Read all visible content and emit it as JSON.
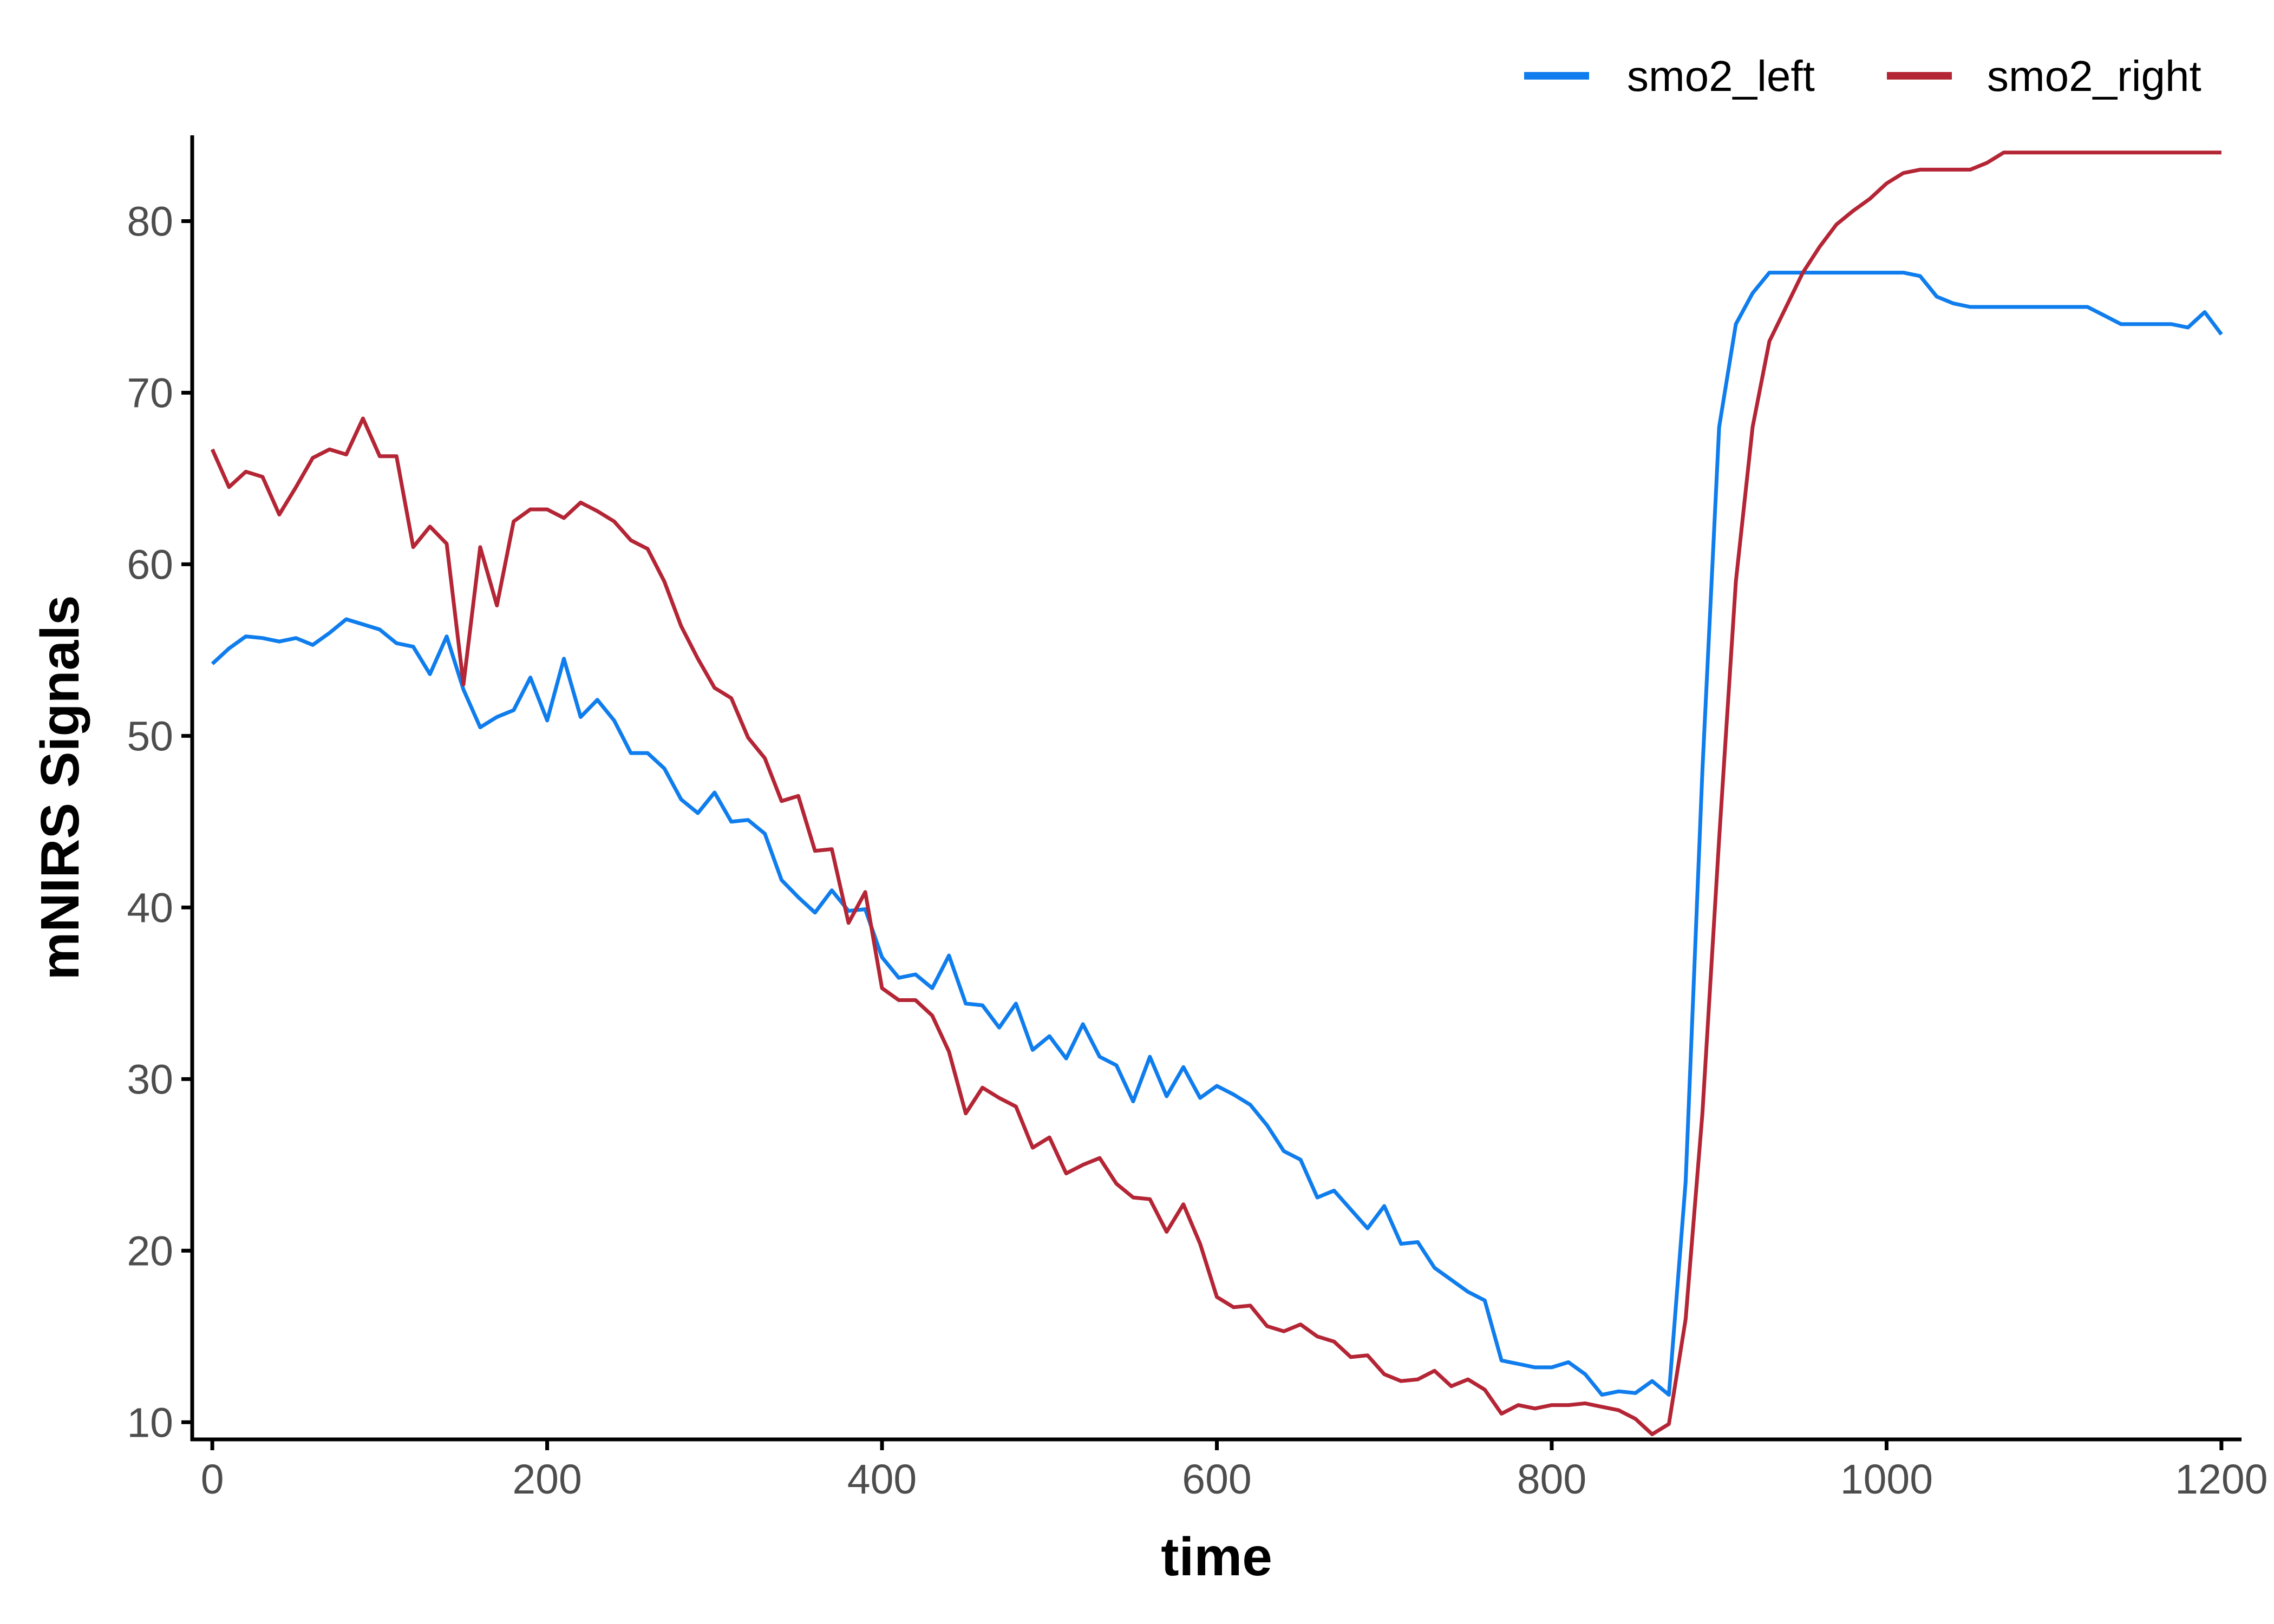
{
  "chart_data": {
    "type": "line",
    "title": "",
    "xlabel": "time",
    "ylabel": "mNIRS Signals",
    "xlim": [
      -12,
      1212
    ],
    "ylim": [
      9,
      85
    ],
    "x_ticks": [
      0,
      200,
      400,
      600,
      800,
      1000,
      1200
    ],
    "y_ticks": [
      10,
      20,
      30,
      40,
      50,
      60,
      70,
      80
    ],
    "legend_position": "top-right",
    "grid": false,
    "x": [
      0,
      10,
      20,
      30,
      40,
      50,
      60,
      70,
      80,
      90,
      100,
      110,
      120,
      130,
      140,
      150,
      160,
      170,
      180,
      190,
      200,
      210,
      220,
      230,
      240,
      250,
      260,
      270,
      280,
      290,
      300,
      310,
      320,
      330,
      340,
      350,
      360,
      370,
      380,
      390,
      400,
      410,
      420,
      430,
      440,
      450,
      460,
      470,
      480,
      490,
      500,
      510,
      520,
      530,
      540,
      550,
      560,
      570,
      580,
      590,
      600,
      610,
      620,
      630,
      640,
      650,
      660,
      670,
      680,
      690,
      700,
      710,
      720,
      730,
      740,
      750,
      760,
      770,
      780,
      790,
      800,
      810,
      820,
      830,
      840,
      850,
      860,
      870,
      880,
      890,
      900,
      910,
      920,
      930,
      940,
      950,
      960,
      970,
      980,
      990,
      1000,
      1010,
      1020,
      1030,
      1040,
      1050,
      1060,
      1070,
      1080,
      1090,
      1100,
      1110,
      1120,
      1130,
      1140,
      1150,
      1160,
      1170,
      1180,
      1190,
      1200
    ],
    "series": [
      {
        "name": "smo2_left",
        "color": "#0f7ded",
        "values": [
          54.2,
          55.1,
          55.8,
          55.7,
          55.5,
          55.7,
          55.3,
          56.0,
          56.8,
          56.5,
          56.2,
          55.4,
          55.2,
          53.6,
          55.8,
          52.7,
          50.5,
          51.1,
          51.5,
          53.4,
          50.9,
          54.5,
          51.1,
          52.1,
          50.9,
          49.0,
          49.0,
          48.1,
          46.3,
          45.5,
          46.7,
          45.0,
          45.1,
          44.3,
          41.6,
          40.6,
          39.7,
          41.0,
          39.8,
          39.9,
          37.1,
          35.9,
          36.1,
          35.3,
          37.2,
          34.4,
          34.3,
          33.0,
          34.4,
          31.7,
          32.5,
          31.2,
          33.2,
          31.3,
          30.8,
          28.7,
          31.3,
          29.0,
          30.7,
          28.9,
          29.6,
          29.1,
          28.5,
          27.3,
          25.8,
          25.3,
          23.1,
          23.5,
          22.4,
          21.3,
          22.6,
          20.4,
          20.5,
          19.0,
          18.3,
          17.6,
          17.1,
          13.6,
          13.4,
          13.2,
          13.2,
          13.5,
          12.8,
          11.6,
          11.8,
          11.7,
          12.4,
          11.6,
          24.0,
          48.0,
          68.0,
          74.0,
          75.8,
          77.0,
          77.0,
          77.0,
          77.0,
          77.0,
          77.0,
          77.0,
          77.0,
          77.0,
          76.8,
          75.6,
          75.2,
          75.0,
          75.0,
          75.0,
          75.0,
          75.0,
          75.0,
          75.0,
          75.0,
          74.5,
          74.0,
          74.0,
          74.0,
          74.0,
          73.8,
          74.7,
          73.4
        ]
      },
      {
        "name": "smo2_right",
        "color": "#b42535",
        "values": [
          66.7,
          64.5,
          65.4,
          65.1,
          62.9,
          64.5,
          66.2,
          66.7,
          66.4,
          68.5,
          66.3,
          66.3,
          61.0,
          62.2,
          61.2,
          53.0,
          61.0,
          57.6,
          62.5,
          63.2,
          63.2,
          62.7,
          63.6,
          63.1,
          62.5,
          61.4,
          60.9,
          59.0,
          56.4,
          54.5,
          52.8,
          52.2,
          49.9,
          48.7,
          46.2,
          46.5,
          43.3,
          43.4,
          39.1,
          40.9,
          35.3,
          34.6,
          34.6,
          33.7,
          31.6,
          28.0,
          29.5,
          28.9,
          28.4,
          26.0,
          26.6,
          24.5,
          25.0,
          25.4,
          23.9,
          23.1,
          23.0,
          21.1,
          22.7,
          20.4,
          17.3,
          16.7,
          16.8,
          15.6,
          15.3,
          15.7,
          15.0,
          14.7,
          13.8,
          13.9,
          12.8,
          12.4,
          12.5,
          13.0,
          12.1,
          12.5,
          11.9,
          10.5,
          11.0,
          10.8,
          11.0,
          11.0,
          11.1,
          10.9,
          10.7,
          10.2,
          9.3,
          9.9,
          16.0,
          28.0,
          44.0,
          59.0,
          68.0,
          73.0,
          75.0,
          77.0,
          78.5,
          79.8,
          80.6,
          81.3,
          82.2,
          82.8,
          83.0,
          83.0,
          83.0,
          83.0,
          83.4,
          84.0,
          84.0,
          84.0,
          84.0,
          84.0,
          84.0,
          84.0,
          84.0,
          84.0,
          84.0,
          84.0,
          84.0,
          84.0,
          84.0
        ]
      }
    ]
  }
}
